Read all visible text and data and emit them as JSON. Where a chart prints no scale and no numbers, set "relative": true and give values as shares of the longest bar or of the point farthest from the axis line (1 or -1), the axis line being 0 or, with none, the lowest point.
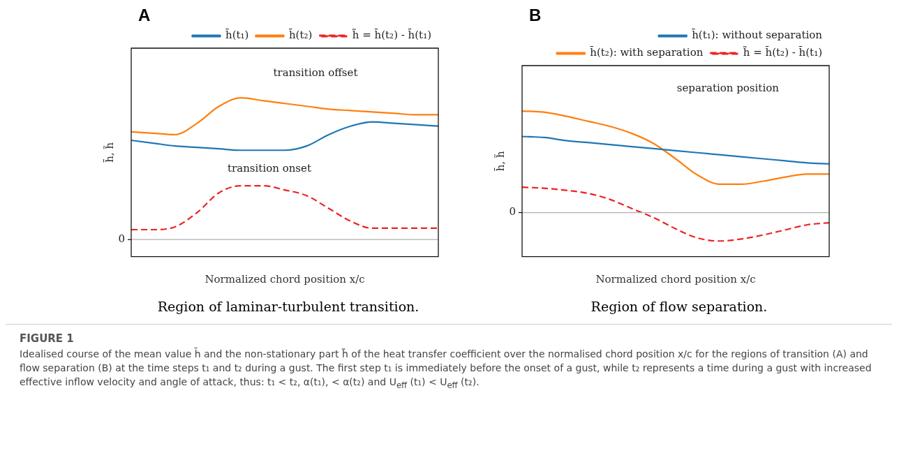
{
  "chart_data": [
    {
      "type": "line",
      "title": "A",
      "xlabel": "Normalized chord position x/c",
      "ylabel": "h̄, h̃",
      "relative": true,
      "legend": "top right",
      "marker": "none",
      "grid": false,
      "categories": [
        null,
        null,
        null,
        null,
        null,
        null,
        null,
        null,
        null,
        null,
        null,
        null,
        null,
        null,
        null
      ],
      "ref_lines": [
        {
          "axis": "y",
          "value": 0,
          "label": "0",
          "color": "#b0b0b0"
        }
      ],
      "annotations": [
        "transition offset",
        "transition onset",
        "Region of laminar-turbulent transition.",
        "FIGURE 1",
        "Idealised course of the mean value h̄ and the non-stationary part h̃ of the heat transfer coefficient over the normalised chord position x/c for the regions of transition (A) and flow separation (B) at the time steps t₁ and t₂ during a gust. The first step t₁ is immediately before the onset of a gust, while t₂ represents a time during a gust with increased effective inflow velocity and angle of attack, thus: t₁ < t₂, α(t₁), < α(t₂) and U$_{eff}$ (t₁) < U$_{eff}$ (t₂)."
      ],
      "series": [
        {
          "name": "h̄(t₁)",
          "color": "#1f77b4",
          "line_style": "solid",
          "values": [
            0.7,
            0.68,
            0.66,
            0.65,
            0.64,
            0.63,
            0.63,
            0.63,
            0.66,
            0.74,
            0.8,
            0.83,
            0.82,
            0.81,
            0.8
          ]
        },
        {
          "name": "h̄(t₂)",
          "color": "#ff7f0e",
          "line_style": "solid",
          "values": [
            0.76,
            0.75,
            0.74,
            0.82,
            0.94,
            1.0,
            0.98,
            0.96,
            0.94,
            0.92,
            0.91,
            0.9,
            0.89,
            0.88,
            0.88
          ]
        },
        {
          "name": "h̃ = h̄(t₂) - h̄(t₁)",
          "color": "#ee2222",
          "line_style": "dashed",
          "values": [
            0.07,
            0.07,
            0.09,
            0.19,
            0.33,
            0.38,
            0.38,
            0.35,
            0.31,
            0.22,
            0.13,
            0.08,
            0.08,
            0.08,
            0.08
          ]
        }
      ]
    },
    {
      "type": "line",
      "title": "B",
      "xlabel": "Normalized chord position x/c",
      "ylabel": "h̄, h̃",
      "relative": true,
      "legend": "top right",
      "marker": "none",
      "grid": false,
      "categories": [
        null,
        null,
        null,
        null,
        null,
        null,
        null,
        null,
        null,
        null,
        null,
        null,
        null,
        null,
        null
      ],
      "ref_lines": [
        {
          "axis": "y",
          "value": 0,
          "label": "0",
          "color": "#b0b0b0"
        }
      ],
      "annotations": [
        "separation position",
        "Region of flow separation."
      ],
      "series": [
        {
          "name": "h̄(t₁): without separation",
          "color": "#1f77b4",
          "line_style": "solid",
          "values": [
            0.75,
            0.74,
            0.71,
            0.69,
            0.67,
            0.65,
            0.63,
            0.61,
            0.59,
            0.57,
            0.55,
            0.53,
            0.51,
            0.49,
            0.48
          ]
        },
        {
          "name": "h̄(t₂): with separation",
          "color": "#ff7f0e",
          "line_style": "solid",
          "values": [
            1.0,
            0.99,
            0.95,
            0.9,
            0.85,
            0.78,
            0.68,
            0.53,
            0.37,
            0.28,
            0.28,
            0.31,
            0.35,
            0.38,
            0.38
          ]
        },
        {
          "name": "h̃ = h̄(t₂) - h̄(t₁)",
          "color": "#ee2222",
          "line_style": "dashed",
          "values": [
            0.25,
            0.24,
            0.22,
            0.19,
            0.13,
            0.04,
            -0.05,
            -0.16,
            -0.25,
            -0.28,
            -0.26,
            -0.22,
            -0.17,
            -0.12,
            -0.1
          ]
        }
      ]
    }
  ]
}
